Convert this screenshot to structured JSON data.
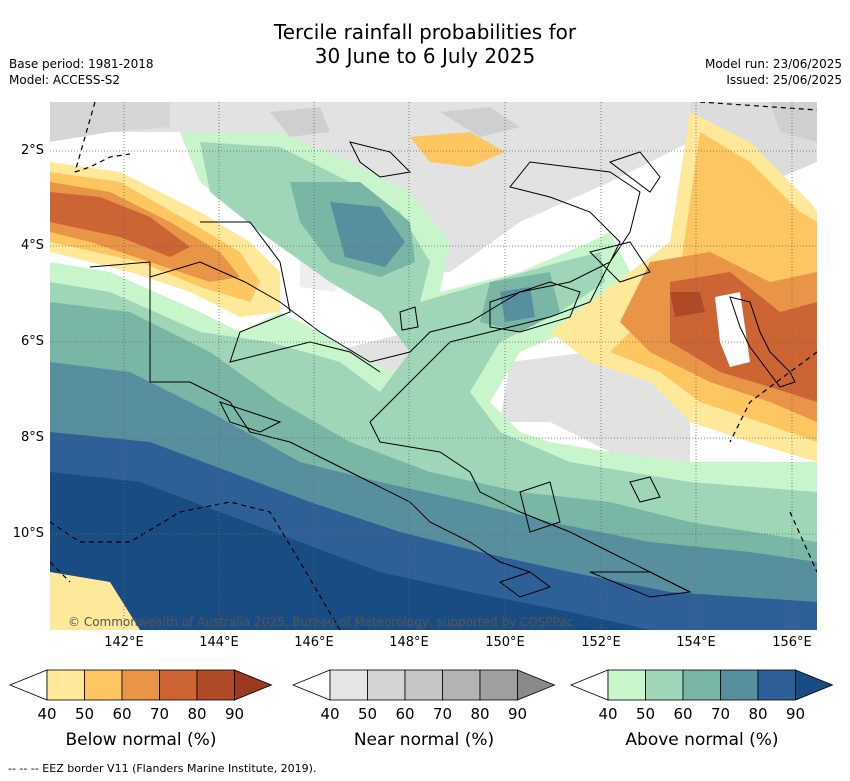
{
  "title": {
    "line1": "Tercile rainfall probabilities for",
    "line2": "30 June to 6 July 2025"
  },
  "meta": {
    "base_period": "Base period: 1981-2018",
    "model": "Model: ACCESS-S2",
    "model_run": "Model run: 23/06/2025",
    "issued": "Issued: 25/06/2025"
  },
  "map": {
    "copyright": "© Commonwealth of Australia 2025, Bureau of Meteorology, supported by COSPPac",
    "lat_labels": [
      "2°S",
      "4°S",
      "6°S",
      "8°S",
      "10°S"
    ],
    "lon_labels": [
      "142°E",
      "144°E",
      "146°E",
      "148°E",
      "150°E",
      "152°E",
      "154°E",
      "156°E"
    ],
    "grid": "dotted"
  },
  "colorbars": [
    {
      "name": "Below normal (%)",
      "ticks": [
        "40",
        "50",
        "60",
        "70",
        "80",
        "90"
      ],
      "colors": [
        "#ffffff",
        "#fee89a",
        "#fdc660",
        "#e89548",
        "#cc6433",
        "#b04a26",
        "#9c3a1f"
      ]
    },
    {
      "name": "Near normal (%)",
      "ticks": [
        "40",
        "50",
        "60",
        "70",
        "80",
        "90"
      ],
      "colors": [
        "#ffffff",
        "#e5e5e5",
        "#d4d4d4",
        "#c5c5c5",
        "#b3b3b3",
        "#a0a0a0",
        "#8a8a8a"
      ]
    },
    {
      "name": "Above normal (%)",
      "ticks": [
        "40",
        "50",
        "60",
        "70",
        "80",
        "90"
      ],
      "colors": [
        "#ffffff",
        "#c9f5cc",
        "#9fd6b8",
        "#7ab6a6",
        "#578f9e",
        "#2e5f97",
        "#1a4c84"
      ]
    }
  ],
  "footnote": "--  --  -- EEZ border V11 (Flanders Marine Institute, 2019)."
}
